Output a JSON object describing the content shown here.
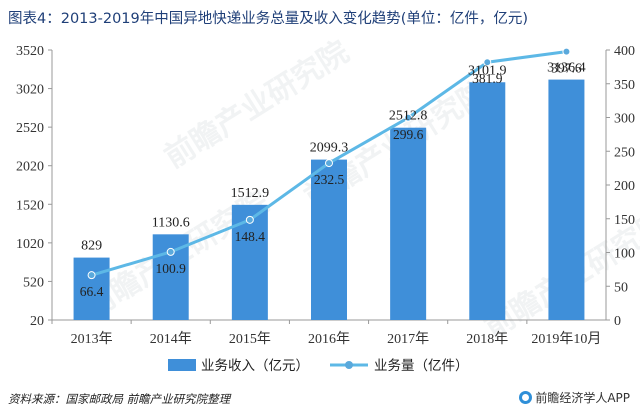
{
  "header": {
    "title": "图表4：2013-2019年中国异地快递业务总量及收入变化趋势(单位：亿件，亿元)"
  },
  "footer": {
    "source": "资料来源：国家邮政局 前瞻产业研究院整理",
    "brand": "前瞻经济学人APP"
  },
  "watermark": {
    "text": "前瞻产业研究院"
  },
  "colors": {
    "bar": "#3f8fd9",
    "line": "#5db8e6",
    "marker": "#5aa9dc",
    "axis_text": "#333333",
    "grid": "#bbbbbb"
  },
  "chart_data": {
    "type": "bar",
    "categories": [
      "2013年",
      "2014年",
      "2015年",
      "2016年",
      "2017年",
      "2018年",
      "2019年10月"
    ],
    "series": [
      {
        "name": "业务收入（亿元）",
        "type": "bar",
        "axis": "left",
        "values": [
          829,
          1130.6,
          1512.9,
          2099.3,
          2512.8,
          3101.9,
          3136.4
        ],
        "labels": [
          "829",
          "1130.6",
          "1512.9",
          "2099.3",
          "2512.8",
          "3101.9",
          "3136.4"
        ]
      },
      {
        "name": "业务量（亿件）",
        "type": "line",
        "axis": "right",
        "values": [
          66.4,
          100.9,
          148.4,
          232.5,
          299.6,
          381.9,
          397.6
        ],
        "labels": [
          "66.4",
          "100.9",
          "148.4",
          "232.5",
          "299.6",
          "381.9",
          "397.6"
        ]
      }
    ],
    "y_left": {
      "min": 20,
      "max": 3520,
      "ticks": [
        "20",
        "520",
        "1020",
        "1520",
        "2020",
        "2520",
        "3020",
        "3520"
      ]
    },
    "y_right": {
      "min": 0,
      "max": 400,
      "ticks": [
        "0",
        "50",
        "100",
        "150",
        "200",
        "250",
        "300",
        "350",
        "400"
      ]
    },
    "grid": false,
    "legend_position": "bottom"
  }
}
